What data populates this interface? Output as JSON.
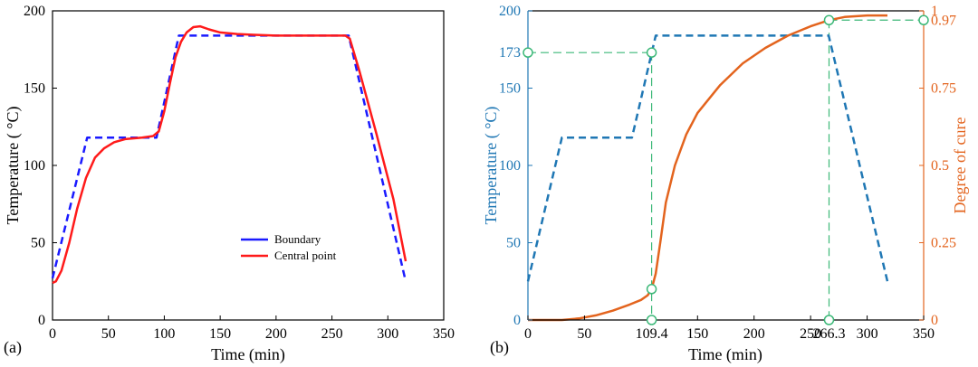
{
  "charts": [
    {
      "panel_label": "(a)",
      "xlabel": "Time (min)",
      "ylabel": "Temperature ( °C)",
      "xlim": [
        0,
        350
      ],
      "ylim": [
        0,
        200
      ],
      "xticks": [
        0,
        50,
        100,
        150,
        200,
        250,
        300,
        350
      ],
      "yticks": [
        0,
        50,
        100,
        150,
        200
      ],
      "legend": [
        "Boundary",
        "Central point"
      ],
      "colors": {
        "boundary": "#1a1aff",
        "central": "#ff1a1a"
      }
    },
    {
      "panel_label": "(b)",
      "xlabel": "Time (min)",
      "ylabel_left": "Temperature ( °C)",
      "ylabel_right": "Degree of cure",
      "xlim": [
        0,
        350
      ],
      "ylim_left": [
        0,
        200
      ],
      "ylim_right": [
        0,
        1
      ],
      "xticks": [
        "0",
        "50",
        "109.4",
        "150",
        "200",
        "250",
        "266.3",
        "300",
        "350"
      ],
      "yticks_left": [
        "0",
        "50",
        "100",
        "150",
        "173",
        "200"
      ],
      "yticks_right": [
        "0",
        "0.25",
        "0.5",
        "0.75",
        "0.97",
        "1"
      ],
      "colors": {
        "temperature": "#1f77b4",
        "cure": "#e3641e",
        "marker": "#3cb878"
      }
    }
  ],
  "chart_data": [
    {
      "type": "line",
      "title": "",
      "xlabel": "Time (min)",
      "ylabel": "Temperature ( °C)",
      "xlim": [
        0,
        350
      ],
      "ylim": [
        0,
        200
      ],
      "grid": false,
      "legend_position": "bottom-center",
      "series": [
        {
          "name": "Boundary",
          "style": "dashed",
          "color": "#1a1aff",
          "points": [
            [
              0,
              27
            ],
            [
              31,
              118
            ],
            [
              93,
              118
            ],
            [
              113,
              184
            ],
            [
              265,
              184
            ],
            [
              316,
              25
            ]
          ]
        },
        {
          "name": "Central point",
          "style": "solid",
          "color": "#ff1a1a",
          "points": [
            [
              0,
              24
            ],
            [
              3,
              25
            ],
            [
              8,
              32
            ],
            [
              15,
              50
            ],
            [
              22,
              72
            ],
            [
              30,
              92
            ],
            [
              38,
              105
            ],
            [
              46,
              111
            ],
            [
              55,
              115
            ],
            [
              65,
              117
            ],
            [
              80,
              118
            ],
            [
              90,
              119
            ],
            [
              95,
              122
            ],
            [
              100,
              135
            ],
            [
              105,
              153
            ],
            [
              110,
              170
            ],
            [
              115,
              180
            ],
            [
              120,
              186
            ],
            [
              126,
              189.5
            ],
            [
              132,
              190
            ],
            [
              140,
              188
            ],
            [
              150,
              186
            ],
            [
              165,
              185
            ],
            [
              180,
              184.5
            ],
            [
              200,
              184
            ],
            [
              262,
              184
            ],
            [
              266,
              182
            ],
            [
              275,
              160
            ],
            [
              290,
              120
            ],
            [
              305,
              78
            ],
            [
              316,
              38
            ]
          ]
        }
      ]
    },
    {
      "type": "line",
      "title": "",
      "xlabel": "Time (min)",
      "ylabel_left": "Temperature ( °C)",
      "ylabel_right": "Degree of cure",
      "xlim": [
        0,
        350
      ],
      "ylim_left": [
        0,
        200
      ],
      "ylim_right": [
        0,
        1
      ],
      "grid": false,
      "series": [
        {
          "name": "",
          "axis": "left",
          "style": "dashed",
          "color": "#1f77b4",
          "points": [
            [
              0,
              25
            ],
            [
              30,
              118
            ],
            [
              92,
              118
            ],
            [
              113,
              184
            ],
            [
              266,
              184
            ],
            [
              318,
              25
            ]
          ]
        },
        {
          "name": "",
          "axis": "right",
          "style": "solid",
          "color": "#e3641e",
          "points": [
            [
              0,
              0
            ],
            [
              30,
              0
            ],
            [
              45,
              0.005
            ],
            [
              60,
              0.015
            ],
            [
              75,
              0.03
            ],
            [
              90,
              0.05
            ],
            [
              100,
              0.065
            ],
            [
              106,
              0.08
            ],
            [
              109.4,
              0.1
            ],
            [
              113,
              0.15
            ],
            [
              117,
              0.25
            ],
            [
              122,
              0.38
            ],
            [
              130,
              0.5
            ],
            [
              140,
              0.6
            ],
            [
              150,
              0.67
            ],
            [
              170,
              0.76
            ],
            [
              190,
              0.83
            ],
            [
              210,
              0.88
            ],
            [
              230,
              0.92
            ],
            [
              250,
              0.95
            ],
            [
              266.3,
              0.97
            ],
            [
              280,
              0.98
            ],
            [
              300,
              0.985
            ],
            [
              318,
              0.985
            ]
          ]
        }
      ],
      "markers": [
        {
          "x": 109.4,
          "y_left": 173
        },
        {
          "x": 109.4,
          "y_right": 0.1
        },
        {
          "x": 109.4,
          "y_left": 0
        },
        {
          "x": 266.3,
          "y_right": 0.97
        },
        {
          "x": 266.3,
          "y_left": 0
        },
        {
          "x": 0,
          "y_left": 173
        },
        {
          "x": 350,
          "y_right": 0.97
        }
      ]
    }
  ]
}
